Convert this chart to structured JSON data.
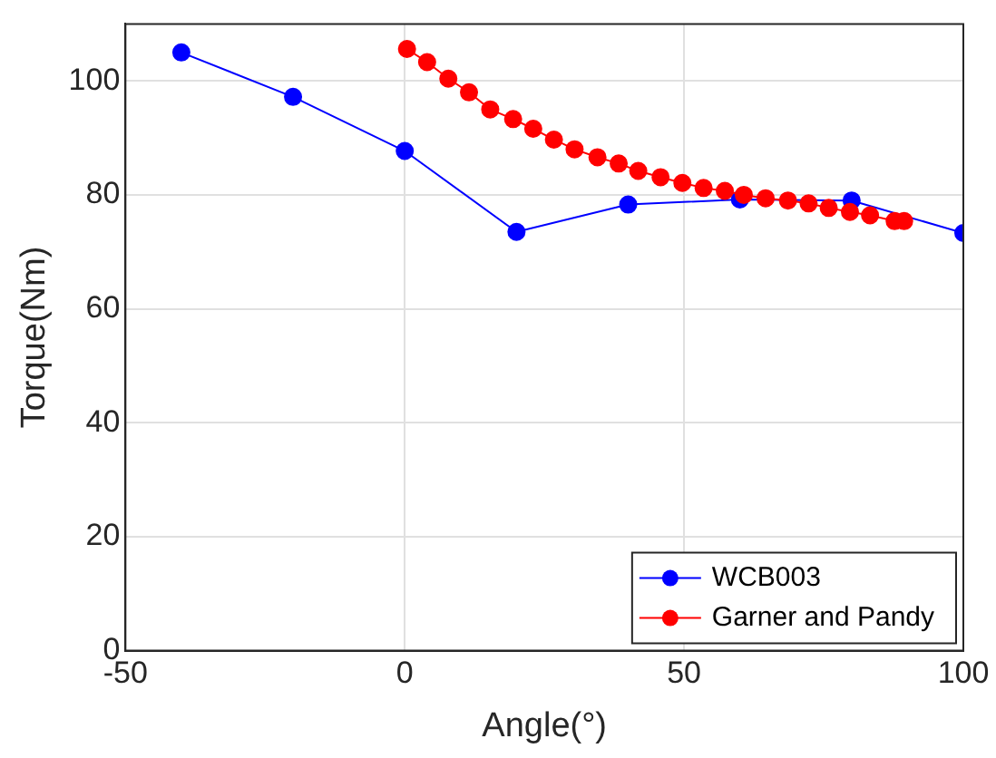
{
  "chart_data": {
    "type": "line",
    "xlabel": "Angle(°)",
    "ylabel": "Torque(Nm)",
    "xlim": [
      -50,
      100
    ],
    "xticks": [
      -50,
      0,
      50,
      100
    ],
    "ylim": [
      0,
      110
    ],
    "yticks": [
      0,
      20,
      40,
      60,
      80,
      100
    ],
    "grid": true,
    "legend": "bottom right",
    "marker": "circle",
    "line_style": "solid",
    "series": [
      {
        "name": "WCB003",
        "color": "#0000ff",
        "x": [
          -40,
          -20,
          0,
          20,
          40,
          60,
          80,
          100
        ],
        "values": [
          105,
          97.2,
          87.7,
          73.5,
          78.3,
          79.2,
          79,
          73.3
        ]
      },
      {
        "name": "Garner and Pandy",
        "color": "#ff0000",
        "x": [
          0.4,
          4,
          7.8,
          11.5,
          15.3,
          19.4,
          23,
          26.7,
          30.4,
          34.5,
          38.3,
          41.8,
          45.8,
          49.7,
          53.5,
          57.3,
          60.7,
          64.6,
          68.6,
          72.3,
          75.9,
          79.7,
          83.3,
          87.7,
          89.4
        ],
        "values": [
          105.6,
          103.3,
          100.4,
          98,
          95,
          93.3,
          91.6,
          89.7,
          88,
          86.6,
          85.5,
          84.2,
          83.1,
          82.1,
          81.2,
          80.7,
          80,
          79.4,
          79,
          78.5,
          77.7,
          77,
          76.4,
          75.4,
          75.4
        ]
      }
    ]
  }
}
